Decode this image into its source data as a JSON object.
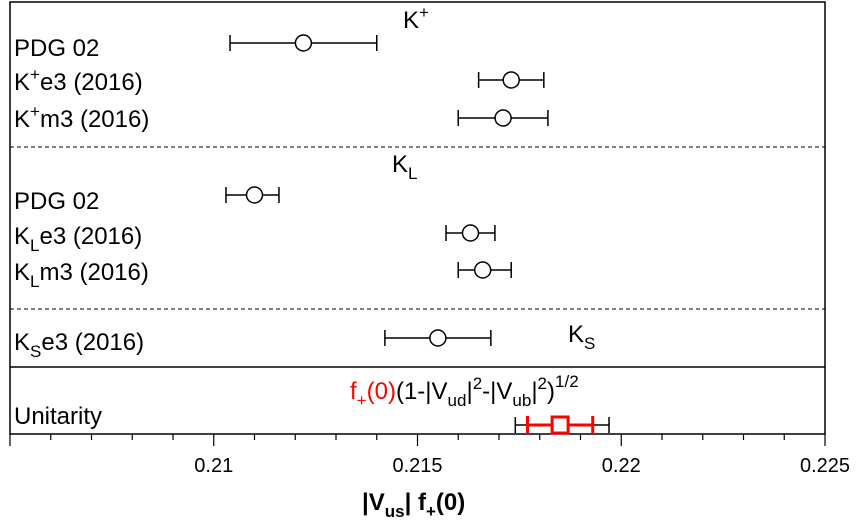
{
  "chart_data": {
    "type": "scatter",
    "orientation": "horizontal error bars",
    "xlabel": {
      "main": "|V",
      "sub": "us",
      "rest": "| f",
      "sub2": "+",
      "tail": "(0)"
    },
    "xlim": [
      0.205,
      0.225
    ],
    "xticks": [
      "0.21",
      "0.215",
      "0.22",
      "0.225"
    ],
    "xtick_values": [
      0.21,
      0.215,
      0.22,
      0.225
    ],
    "grid": false,
    "sections": [
      {
        "header": {
          "main": "K",
          "sup": "+"
        },
        "rows": [
          {
            "label": "PDG 02",
            "value": 0.2122,
            "lo": 0.2104,
            "hi": 0.214
          },
          {
            "label_pre": "K",
            "label_sup": "+",
            "label_post": "e3 (2016)",
            "value": 0.2173,
            "lo": 0.2165,
            "hi": 0.2181
          },
          {
            "label_pre": "K",
            "label_sup": "+",
            "label_post": "m3 (2016)",
            "value": 0.2171,
            "lo": 0.216,
            "hi": 0.2182
          }
        ]
      },
      {
        "header": {
          "main": "K",
          "sub": "L"
        },
        "rows": [
          {
            "label": "PDG 02",
            "value": 0.211,
            "lo": 0.2103,
            "hi": 0.2116
          },
          {
            "label_pre": "K",
            "label_sub": "L",
            "label_post": "e3 (2016)",
            "value": 0.2163,
            "lo": 0.2157,
            "hi": 0.2169
          },
          {
            "label_pre": "K",
            "label_sub": "L",
            "label_post": "m3 (2016)",
            "value": 0.2166,
            "lo": 0.216,
            "hi": 0.2173
          }
        ]
      },
      {
        "header": {
          "main": "K",
          "sub": "S"
        },
        "rows": [
          {
            "label_pre": "K",
            "label_sub": "S",
            "label_post": "e3 (2016)",
            "value": 0.2155,
            "lo": 0.2142,
            "hi": 0.2168
          }
        ]
      },
      {
        "rows": [
          {
            "label": "Unitarity",
            "value": 0.2185,
            "lo": 0.2174,
            "hi": 0.2197,
            "inner_lo": 0.2177,
            "inner_hi": 0.2193
          }
        ],
        "formula": {
          "f_main": "f",
          "f_sub": "+",
          "f_tail": "(0)",
          "p1": "(1-|V",
          "s1": "ud",
          "p2": "|",
          "sup1": "2",
          "p3": "-|V",
          "s2": "ub",
          "p4": "|",
          "sup2": "2",
          "p5": ")",
          "sup3": "1/2"
        }
      }
    ],
    "colors": {
      "unitarity": "#ff0000",
      "data": "#000000"
    }
  }
}
